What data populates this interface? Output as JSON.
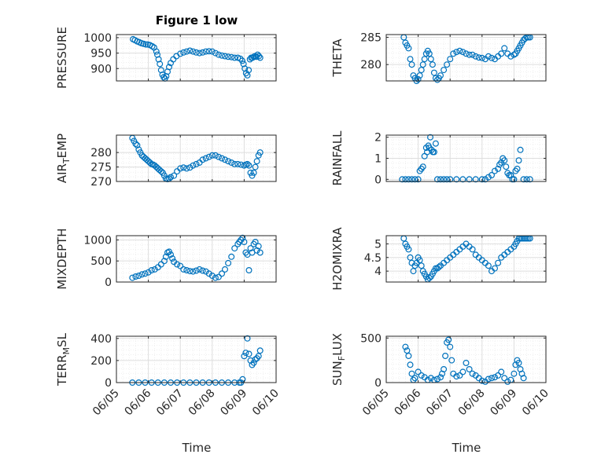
{
  "figure": {
    "title": "Figure 1 low",
    "marker_color": "#0072BD",
    "x_axis_label": "Time",
    "x_tick_labels": [
      "06/05",
      "06/06",
      "06/07",
      "06/08",
      "06/09",
      "06/10"
    ]
  },
  "chart_data": [
    {
      "type": "scatter",
      "ylabel": "PRESSURE",
      "ylim": [
        860,
        1010
      ],
      "yticks": [
        900,
        950,
        1000
      ],
      "xlim": [
        0,
        5
      ],
      "grid": true,
      "x": [
        0.52,
        0.58,
        0.65,
        0.72,
        0.78,
        0.85,
        0.92,
        0.98,
        1.05,
        1.12,
        1.18,
        1.25,
        1.28,
        1.32,
        1.36,
        1.4,
        1.44,
        1.48,
        1.52,
        1.56,
        1.6,
        1.65,
        1.7,
        1.78,
        1.88,
        2.0,
        2.1,
        2.2,
        2.3,
        2.4,
        2.5,
        2.6,
        2.7,
        2.8,
        2.9,
        3.0,
        3.1,
        3.2,
        3.3,
        3.4,
        3.5,
        3.6,
        3.7,
        3.8,
        3.88,
        3.94,
        3.98,
        4.02,
        4.06,
        4.1,
        4.14,
        4.18,
        4.22,
        4.26,
        4.3,
        4.34,
        4.38,
        4.42,
        4.46,
        4.5
      ],
      "y": [
        995,
        992,
        988,
        985,
        982,
        980,
        978,
        978,
        976,
        972,
        968,
        955,
        945,
        930,
        915,
        895,
        880,
        872,
        868,
        875,
        890,
        905,
        918,
        930,
        940,
        948,
        952,
        955,
        958,
        955,
        952,
        950,
        952,
        955,
        956,
        955,
        950,
        945,
        942,
        940,
        938,
        937,
        935,
        935,
        932,
        925,
        915,
        900,
        885,
        878,
        895,
        930,
        935,
        935,
        938,
        940,
        938,
        945,
        940,
        935
      ]
    },
    {
      "type": "scatter",
      "ylabel": "THETA",
      "ylim": [
        277,
        285.5
      ],
      "yticks": [
        280,
        285
      ],
      "xlim": [
        0,
        5
      ],
      "grid": true,
      "x": [
        0.55,
        0.6,
        0.65,
        0.7,
        0.75,
        0.8,
        0.85,
        0.9,
        0.95,
        1.0,
        1.05,
        1.1,
        1.15,
        1.2,
        1.25,
        1.3,
        1.35,
        1.4,
        1.45,
        1.5,
        1.55,
        1.6,
        1.65,
        1.7,
        1.8,
        1.9,
        2.0,
        2.1,
        2.2,
        2.3,
        2.4,
        2.5,
        2.6,
        2.7,
        2.8,
        2.9,
        3.0,
        3.1,
        3.2,
        3.3,
        3.4,
        3.5,
        3.6,
        3.7,
        3.8,
        3.9,
        4.0,
        4.05,
        4.1,
        4.15,
        4.2,
        4.25,
        4.3,
        4.35,
        4.4,
        4.45,
        4.5
      ],
      "y": [
        285,
        284,
        283.5,
        283,
        281,
        280,
        278,
        277.5,
        277,
        277.3,
        278,
        279,
        280,
        281,
        282,
        282.5,
        282,
        281,
        280,
        278.5,
        277.5,
        277.2,
        277.5,
        278,
        279,
        280,
        281,
        282,
        282.3,
        282.5,
        282.3,
        282,
        281.8,
        281.8,
        281.5,
        281.3,
        281.2,
        281,
        281.5,
        281.2,
        281,
        281.5,
        282,
        283,
        282,
        281.5,
        281.8,
        282,
        282.5,
        283,
        283.5,
        284,
        284.5,
        284.8,
        285,
        285,
        285
      ]
    },
    {
      "type": "scatter",
      "ylabel": "AIR_TEMP",
      "ylim": [
        270,
        286
      ],
      "yticks": [
        270,
        275,
        280
      ],
      "xlim": [
        0,
        5
      ],
      "grid": true,
      "x": [
        0.5,
        0.55,
        0.6,
        0.65,
        0.7,
        0.75,
        0.8,
        0.85,
        0.9,
        0.95,
        1.0,
        1.05,
        1.1,
        1.15,
        1.2,
        1.25,
        1.3,
        1.35,
        1.4,
        1.45,
        1.5,
        1.55,
        1.6,
        1.65,
        1.7,
        1.8,
        1.9,
        2.0,
        2.1,
        2.2,
        2.3,
        2.4,
        2.5,
        2.6,
        2.7,
        2.8,
        2.9,
        3.0,
        3.1,
        3.2,
        3.3,
        3.4,
        3.5,
        3.6,
        3.7,
        3.8,
        3.9,
        4.0,
        4.05,
        4.1,
        4.15,
        4.2,
        4.25,
        4.3,
        4.35,
        4.4,
        4.45,
        4.5
      ],
      "y": [
        285,
        284,
        283,
        282.5,
        281,
        280,
        279,
        278.5,
        278,
        277.5,
        277,
        276.5,
        276,
        275.8,
        275.5,
        275,
        274.5,
        274,
        273.5,
        273,
        272,
        271,
        270.8,
        271,
        271.5,
        272,
        273.5,
        274.5,
        274.8,
        274.5,
        274.8,
        275.5,
        276,
        276.5,
        277.5,
        278,
        278.5,
        279,
        279,
        278.5,
        278,
        277.5,
        277,
        276.5,
        276,
        276,
        275.8,
        275.5,
        275.8,
        276,
        275.5,
        273,
        272,
        273,
        275,
        277,
        279,
        280
      ]
    },
    {
      "type": "scatter",
      "ylabel": "RAINFALL",
      "ylim": [
        -0.1,
        2.1
      ],
      "yticks": [
        0,
        1,
        2
      ],
      "xlim": [
        0,
        5
      ],
      "grid": true,
      "x": [
        0.5,
        0.6,
        0.7,
        0.8,
        0.9,
        1.0,
        1.05,
        1.1,
        1.15,
        1.2,
        1.25,
        1.28,
        1.32,
        1.35,
        1.38,
        1.42,
        1.46,
        1.5,
        1.55,
        1.6,
        1.7,
        1.8,
        1.9,
        2.0,
        2.2,
        2.4,
        2.6,
        2.8,
        3.0,
        3.1,
        3.2,
        3.3,
        3.4,
        3.5,
        3.55,
        3.6,
        3.65,
        3.7,
        3.75,
        3.8,
        3.85,
        3.9,
        3.95,
        4.0,
        4.05,
        4.1,
        4.15,
        4.2,
        4.3,
        4.4,
        4.5
      ],
      "y": [
        0,
        0,
        0,
        0,
        0,
        0,
        0.4,
        0.5,
        0.6,
        1.1,
        1.5,
        1.3,
        1.6,
        1.5,
        2.0,
        1.4,
        1.3,
        1.3,
        1.7,
        0,
        0,
        0,
        0,
        0,
        0,
        0,
        0,
        0,
        0,
        0,
        0.1,
        0.2,
        0.4,
        0.5,
        0.7,
        0.8,
        1.0,
        0.9,
        0.6,
        0.3,
        0.2,
        0.2,
        0,
        0,
        0.4,
        0.5,
        0.9,
        1.4,
        0,
        0,
        0
      ]
    },
    {
      "type": "scatter",
      "ylabel": "MIXDEPTH",
      "ylim": [
        0,
        1100
      ],
      "yticks": [
        0,
        500,
        1000
      ],
      "xlim": [
        0,
        5
      ],
      "grid": true,
      "x": [
        0.5,
        0.6,
        0.7,
        0.8,
        0.9,
        1.0,
        1.1,
        1.2,
        1.3,
        1.4,
        1.5,
        1.55,
        1.6,
        1.65,
        1.7,
        1.75,
        1.8,
        1.9,
        2.0,
        2.1,
        2.2,
        2.3,
        2.4,
        2.5,
        2.6,
        2.7,
        2.8,
        2.9,
        3.0,
        3.1,
        3.2,
        3.3,
        3.4,
        3.5,
        3.6,
        3.7,
        3.8,
        3.85,
        3.9,
        3.95,
        4.0,
        4.05,
        4.1,
        4.15,
        4.2,
        4.25,
        4.3,
        4.35,
        4.4,
        4.45,
        4.5
      ],
      "y": [
        100,
        130,
        150,
        180,
        200,
        230,
        280,
        300,
        350,
        420,
        500,
        600,
        700,
        720,
        650,
        560,
        480,
        420,
        380,
        300,
        280,
        260,
        250,
        270,
        300,
        270,
        250,
        200,
        150,
        100,
        120,
        200,
        300,
        450,
        600,
        800,
        900,
        950,
        1000,
        1050,
        950,
        700,
        650,
        280,
        800,
        700,
        900,
        950,
        750,
        850,
        700
      ]
    },
    {
      "type": "scatter",
      "ylabel": "H2OMIXRA",
      "ylim": [
        3.6,
        5.3
      ],
      "yticks": [
        4,
        4.5,
        5
      ],
      "xlim": [
        0,
        5
      ],
      "grid": true,
      "x": [
        0.55,
        0.6,
        0.65,
        0.7,
        0.75,
        0.8,
        0.85,
        0.9,
        0.95,
        1.0,
        1.05,
        1.1,
        1.15,
        1.2,
        1.25,
        1.3,
        1.35,
        1.4,
        1.45,
        1.5,
        1.55,
        1.6,
        1.65,
        1.7,
        1.8,
        1.9,
        2.0,
        2.1,
        2.2,
        2.3,
        2.4,
        2.5,
        2.6,
        2.7,
        2.8,
        2.9,
        3.0,
        3.1,
        3.2,
        3.3,
        3.4,
        3.5,
        3.6,
        3.7,
        3.8,
        3.9,
        4.0,
        4.05,
        4.1,
        4.15,
        4.2,
        4.25,
        4.3,
        4.35,
        4.4,
        4.45,
        4.5
      ],
      "y": [
        5.2,
        5.0,
        4.9,
        4.8,
        4.5,
        4.3,
        4.0,
        4.2,
        4.3,
        4.5,
        4.4,
        4.2,
        4.0,
        3.9,
        3.8,
        3.7,
        3.75,
        3.8,
        3.9,
        4.0,
        4.1,
        4.1,
        4.15,
        4.2,
        4.3,
        4.4,
        4.5,
        4.6,
        4.7,
        4.8,
        4.9,
        5.0,
        4.9,
        4.8,
        4.6,
        4.5,
        4.4,
        4.3,
        4.2,
        4.0,
        4.1,
        4.3,
        4.5,
        4.6,
        4.7,
        4.8,
        4.9,
        5.0,
        5.1,
        5.2,
        5.2,
        5.2,
        5.2,
        5.2,
        5.2,
        5.2,
        5.2
      ]
    },
    {
      "type": "scatter",
      "ylabel": "TERR_MSL",
      "ylim": [
        0,
        420
      ],
      "yticks": [
        0,
        200,
        400
      ],
      "xlim": [
        0,
        5
      ],
      "grid": true,
      "x": [
        0.5,
        0.7,
        0.9,
        1.1,
        1.3,
        1.5,
        1.7,
        1.9,
        2.1,
        2.3,
        2.5,
        2.7,
        2.9,
        3.1,
        3.3,
        3.5,
        3.7,
        3.85,
        3.9,
        3.95,
        4.0,
        4.05,
        4.1,
        4.15,
        4.2,
        4.25,
        4.3,
        4.35,
        4.4,
        4.45,
        4.5
      ],
      "y": [
        0,
        0,
        0,
        0,
        0,
        0,
        0,
        0,
        0,
        0,
        0,
        0,
        0,
        0,
        0,
        0,
        0,
        0,
        0,
        30,
        240,
        270,
        400,
        260,
        200,
        160,
        180,
        210,
        220,
        240,
        290
      ]
    },
    {
      "type": "scatter",
      "ylabel": "SUN_FLUX",
      "ylim": [
        0,
        520
      ],
      "yticks": [
        0,
        500
      ],
      "xlim": [
        0,
        5
      ],
      "grid": true,
      "x": [
        0.6,
        0.65,
        0.7,
        0.75,
        0.8,
        0.85,
        0.9,
        1.0,
        1.1,
        1.2,
        1.3,
        1.4,
        1.5,
        1.6,
        1.7,
        1.75,
        1.8,
        1.85,
        1.9,
        1.95,
        2.0,
        2.05,
        2.1,
        2.2,
        2.3,
        2.4,
        2.5,
        2.6,
        2.7,
        2.8,
        2.9,
        3.0,
        3.1,
        3.2,
        3.3,
        3.4,
        3.5,
        3.6,
        3.7,
        3.8,
        3.9,
        4.0,
        4.05,
        4.1,
        4.15,
        4.2,
        4.25,
        4.3
      ],
      "y": [
        400,
        360,
        300,
        200,
        100,
        30,
        50,
        120,
        80,
        60,
        30,
        50,
        30,
        40,
        60,
        100,
        150,
        300,
        450,
        480,
        400,
        250,
        100,
        70,
        80,
        120,
        220,
        150,
        100,
        80,
        50,
        20,
        10,
        40,
        50,
        60,
        80,
        120,
        50,
        10,
        30,
        100,
        200,
        250,
        220,
        150,
        100,
        50
      ]
    }
  ]
}
